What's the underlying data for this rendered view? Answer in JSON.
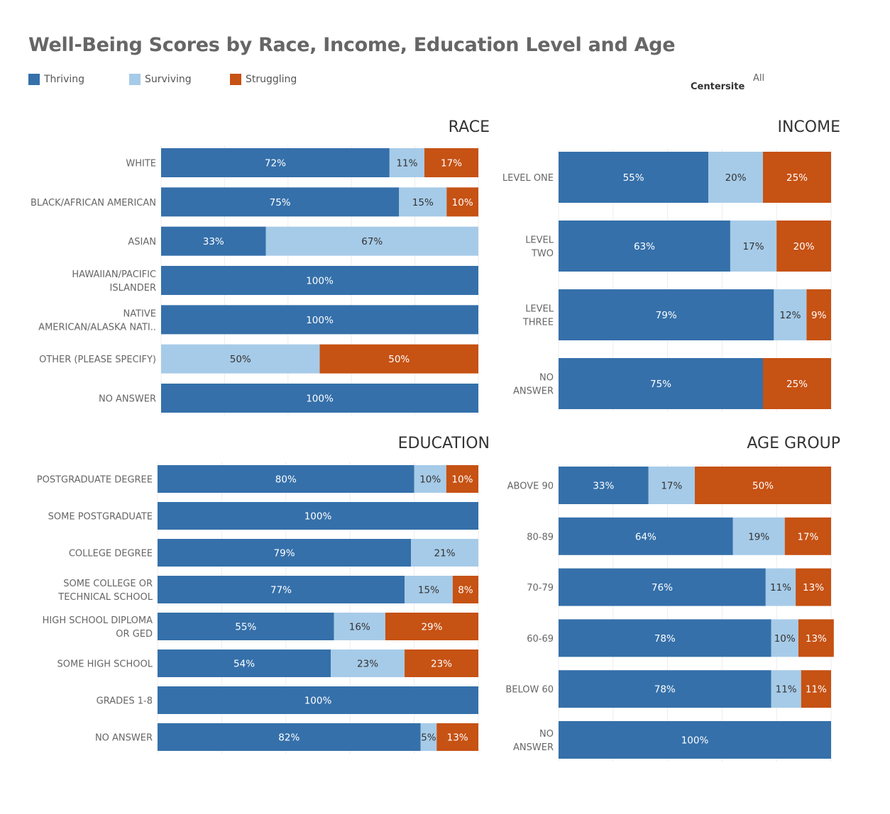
{
  "title": "Well-Being Scores by Race, Income, Education Level and Age",
  "legend": [
    {
      "label": "Thriving",
      "color": "#3570aa"
    },
    {
      "label": "Surviving",
      "color": "#a6cbe8"
    },
    {
      "label": "Struggling",
      "color": "#c65214"
    }
  ],
  "filter": {
    "label": "Centersite",
    "value": "All"
  },
  "chart_data": [
    {
      "type": "bar",
      "orientation": "horizontal",
      "stacked": true,
      "title": "RACE",
      "categories": [
        [
          "WHITE"
        ],
        [
          "BLACK/AFRICAN AMERICAN"
        ],
        [
          "ASIAN"
        ],
        [
          "HAWAIIAN/PACIFIC",
          "ISLANDER"
        ],
        [
          "NATIVE",
          "AMERICAN/ALASKA NATI.."
        ],
        [
          "OTHER (PLEASE SPECIFY)"
        ],
        [
          "NO ANSWER"
        ]
      ],
      "series": [
        {
          "name": "Thriving",
          "values": [
            72,
            75,
            33,
            100,
            100,
            0,
            100
          ],
          "labels": [
            "72%",
            "75%",
            "33%",
            "100%",
            "100%",
            "",
            "100%"
          ]
        },
        {
          "name": "Surviving",
          "values": [
            11,
            15,
            67,
            0,
            0,
            50,
            0
          ],
          "labels": [
            "11%",
            "15%",
            "67%",
            "",
            "",
            "50%",
            ""
          ]
        },
        {
          "name": "Struggling",
          "values": [
            17,
            10,
            0,
            0,
            0,
            50,
            0
          ],
          "labels": [
            "17%",
            "10%",
            "",
            "",
            "",
            "50%",
            ""
          ]
        }
      ]
    },
    {
      "type": "bar",
      "orientation": "horizontal",
      "stacked": true,
      "title": "INCOME",
      "categories": [
        [
          "LEVEL ONE"
        ],
        [
          "LEVEL",
          "TWO"
        ],
        [
          "LEVEL",
          "THREE"
        ],
        [
          "NO",
          "ANSWER"
        ]
      ],
      "series": [
        {
          "name": "Thriving",
          "values": [
            55,
            63,
            79,
            75
          ],
          "labels": [
            "55%",
            "63%",
            "79%",
            "75%"
          ]
        },
        {
          "name": "Surviving",
          "values": [
            20,
            17,
            12,
            0
          ],
          "labels": [
            "20%",
            "17%",
            "12%",
            ""
          ]
        },
        {
          "name": "Struggling",
          "values": [
            25,
            20,
            9,
            25
          ],
          "labels": [
            "25%",
            "20%",
            "9%",
            "25%"
          ]
        }
      ]
    },
    {
      "type": "bar",
      "orientation": "horizontal",
      "stacked": true,
      "title": "EDUCATION",
      "categories": [
        [
          "POSTGRADUATE DEGREE"
        ],
        [
          "SOME POSTGRADUATE"
        ],
        [
          "COLLEGE DEGREE"
        ],
        [
          "SOME COLLEGE OR",
          "TECHNICAL SCHOOL"
        ],
        [
          "HIGH SCHOOL DIPLOMA",
          "OR GED"
        ],
        [
          "SOME HIGH SCHOOL"
        ],
        [
          "GRADES 1-8"
        ],
        [
          "NO ANSWER"
        ]
      ],
      "series": [
        {
          "name": "Thriving",
          "values": [
            80,
            100,
            79,
            77,
            55,
            54,
            100,
            82
          ],
          "labels": [
            "80%",
            "100%",
            "79%",
            "77%",
            "55%",
            "54%",
            "100%",
            "82%"
          ]
        },
        {
          "name": "Surviving",
          "values": [
            10,
            0,
            21,
            15,
            16,
            23,
            0,
            5
          ],
          "labels": [
            "10%",
            "",
            "21%",
            "15%",
            "16%",
            "23%",
            "",
            "5%"
          ]
        },
        {
          "name": "Struggling",
          "values": [
            10,
            0,
            0,
            8,
            29,
            23,
            0,
            13
          ],
          "labels": [
            "10%",
            "",
            "",
            "8%",
            "29%",
            "23%",
            "",
            "13%"
          ]
        }
      ]
    },
    {
      "type": "bar",
      "orientation": "horizontal",
      "stacked": true,
      "title": "AGE GROUP",
      "categories": [
        [
          "ABOVE 90"
        ],
        [
          "80-89"
        ],
        [
          "70-79"
        ],
        [
          "60-69"
        ],
        [
          "BELOW 60"
        ],
        [
          "NO",
          "ANSWER"
        ]
      ],
      "series": [
        {
          "name": "Thriving",
          "values": [
            33,
            64,
            76,
            78,
            78,
            100
          ],
          "labels": [
            "33%",
            "64%",
            "76%",
            "78%",
            "78%",
            "100%"
          ]
        },
        {
          "name": "Surviving",
          "values": [
            17,
            19,
            11,
            10,
            11,
            0
          ],
          "labels": [
            "17%",
            "19%",
            "11%",
            "10%",
            "11%",
            ""
          ]
        },
        {
          "name": "Struggling",
          "values": [
            50,
            17,
            13,
            13,
            11,
            0
          ],
          "labels": [
            "50%",
            "17%",
            "13%",
            "13%",
            "11%",
            ""
          ]
        }
      ]
    }
  ]
}
